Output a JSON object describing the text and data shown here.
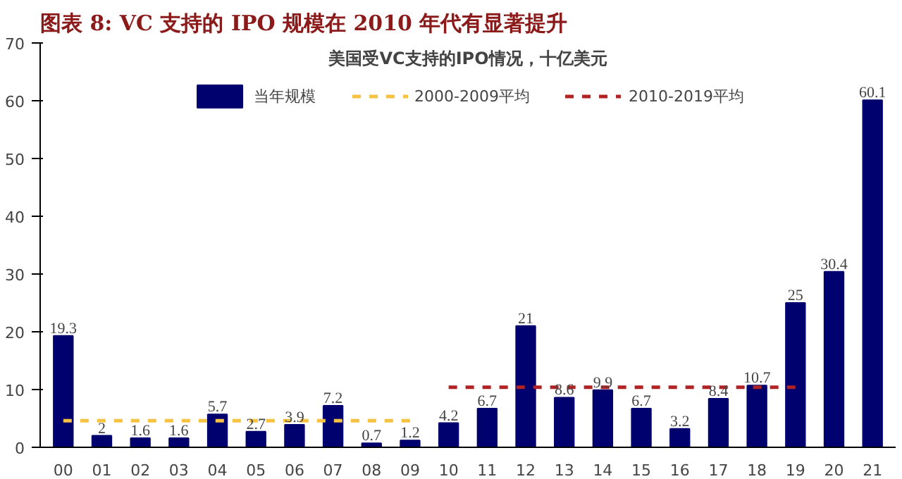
{
  "chart_data": {
    "type": "bar",
    "title": "图表 8:  VC 支持的 IPO 规模在 2010 年代有显著提升",
    "subtitle": "美国受VC支持的IPO情况，十亿美元",
    "categories": [
      "00",
      "01",
      "02",
      "03",
      "04",
      "05",
      "06",
      "07",
      "08",
      "09",
      "10",
      "11",
      "12",
      "13",
      "14",
      "15",
      "16",
      "17",
      "18",
      "19",
      "20",
      "21"
    ],
    "series": [
      {
        "name": "当年规模",
        "color": "#00006e",
        "values": [
          19.3,
          2,
          1.6,
          1.6,
          5.7,
          2.7,
          3.9,
          7.2,
          0.7,
          1.2,
          4.2,
          6.7,
          21,
          8.6,
          9.9,
          6.7,
          3.2,
          8.4,
          10.7,
          25,
          30.4,
          60.1
        ],
        "value_labels": [
          "19.3",
          "2",
          "1.6",
          "1.6",
          "5.7",
          "2.7",
          "3.9",
          "7.2",
          "0.7",
          "1.2",
          "4.2",
          "6.7",
          "21",
          "8.6",
          "9.9",
          "6.7",
          "3.2",
          "8.4",
          "10.7",
          "25",
          "30.4",
          "60.1"
        ]
      },
      {
        "name": "2000-2009平均",
        "type": "line",
        "color": "#f5c242",
        "line_style": "dashed",
        "values": [
          4.6,
          4.6,
          4.6,
          4.6,
          4.6,
          4.6,
          4.6,
          4.6,
          4.6,
          4.6,
          null,
          null,
          null,
          null,
          null,
          null,
          null,
          null,
          null,
          null,
          null,
          null
        ]
      },
      {
        "name": "2010-2019平均",
        "type": "line",
        "color": "#b22222",
        "line_style": "dashed",
        "values": [
          null,
          null,
          null,
          null,
          null,
          null,
          null,
          null,
          null,
          null,
          10.4,
          10.4,
          10.4,
          10.4,
          10.4,
          10.4,
          10.4,
          10.4,
          10.4,
          10.4,
          null,
          null
        ]
      }
    ],
    "ylim": [
      0,
      70
    ],
    "yticks": [
      0,
      10,
      20,
      30,
      40,
      50,
      60,
      70
    ],
    "grid": false,
    "legend": "top"
  }
}
